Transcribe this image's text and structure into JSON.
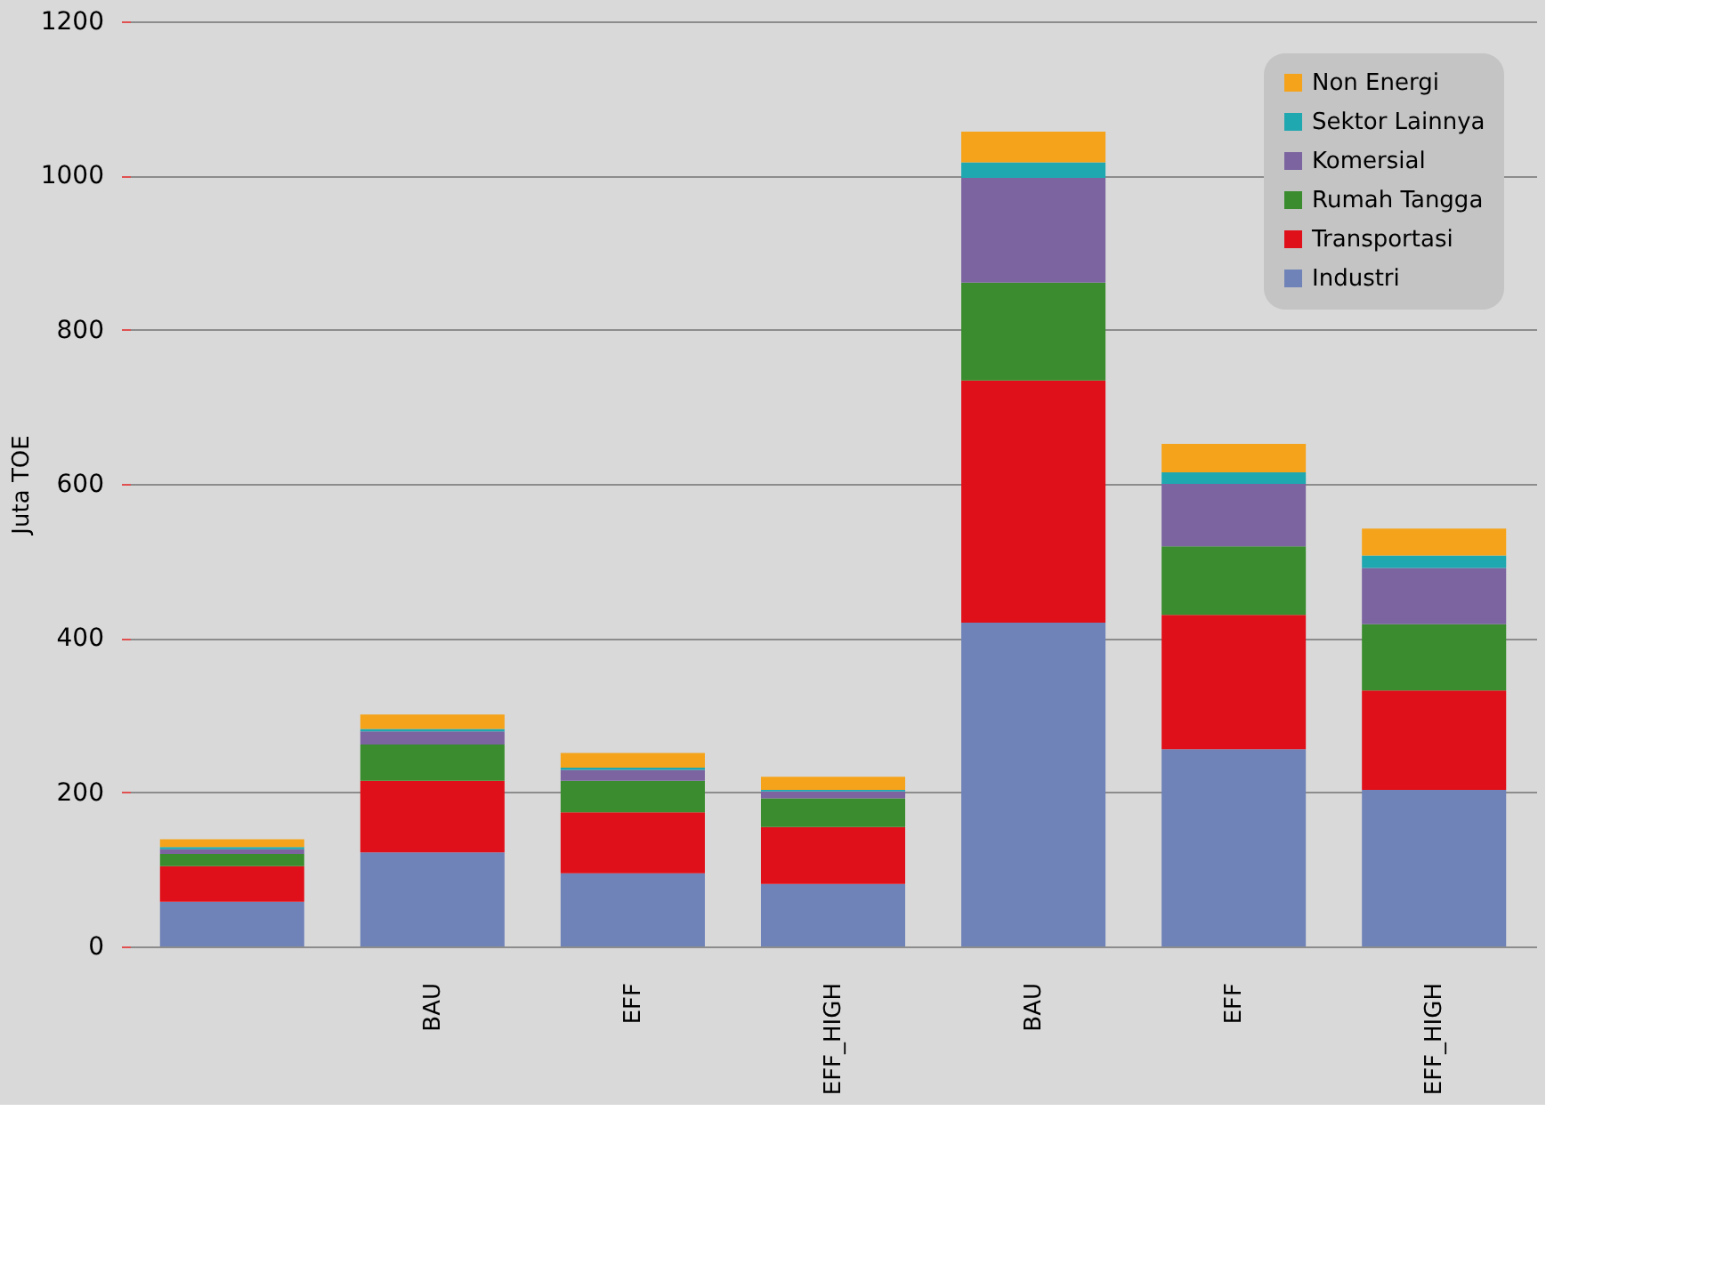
{
  "chart_data": {
    "type": "bar",
    "stacked": true,
    "ylabel": "Juta TOE",
    "categories": [
      null,
      "BAU",
      "EFF",
      "EFF_HIGH",
      "BAU",
      "EFF",
      "EFF_HIGH"
    ],
    "ylim": [
      0,
      1200
    ],
    "yticks": [
      0,
      200,
      400,
      600,
      800,
      1000,
      1200
    ],
    "grid": "y",
    "legend": "top right",
    "series": [
      {
        "name": "Industri",
        "color": "#7083b8",
        "values": [
          58,
          122,
          95,
          81,
          420,
          256,
          203
        ]
      },
      {
        "name": "Transportasi",
        "color": "#e0101a",
        "values": [
          46,
          93,
          79,
          74,
          314,
          174,
          129
        ]
      },
      {
        "name": "Rumah Tangga",
        "color": "#3a8c2e",
        "values": [
          16,
          47,
          41,
          37,
          127,
          89,
          86
        ]
      },
      {
        "name": "Komersial",
        "color": "#7b64a0",
        "values": [
          6,
          17,
          14,
          9,
          136,
          81,
          73
        ]
      },
      {
        "name": "Sektor Lainnya",
        "color": "#20a8b0",
        "values": [
          3,
          3,
          3,
          2,
          20,
          15,
          16
        ]
      },
      {
        "name": "Non Energi",
        "color": "#f5a31a",
        "values": [
          10,
          19,
          19,
          17,
          40,
          37,
          35
        ]
      }
    ]
  }
}
